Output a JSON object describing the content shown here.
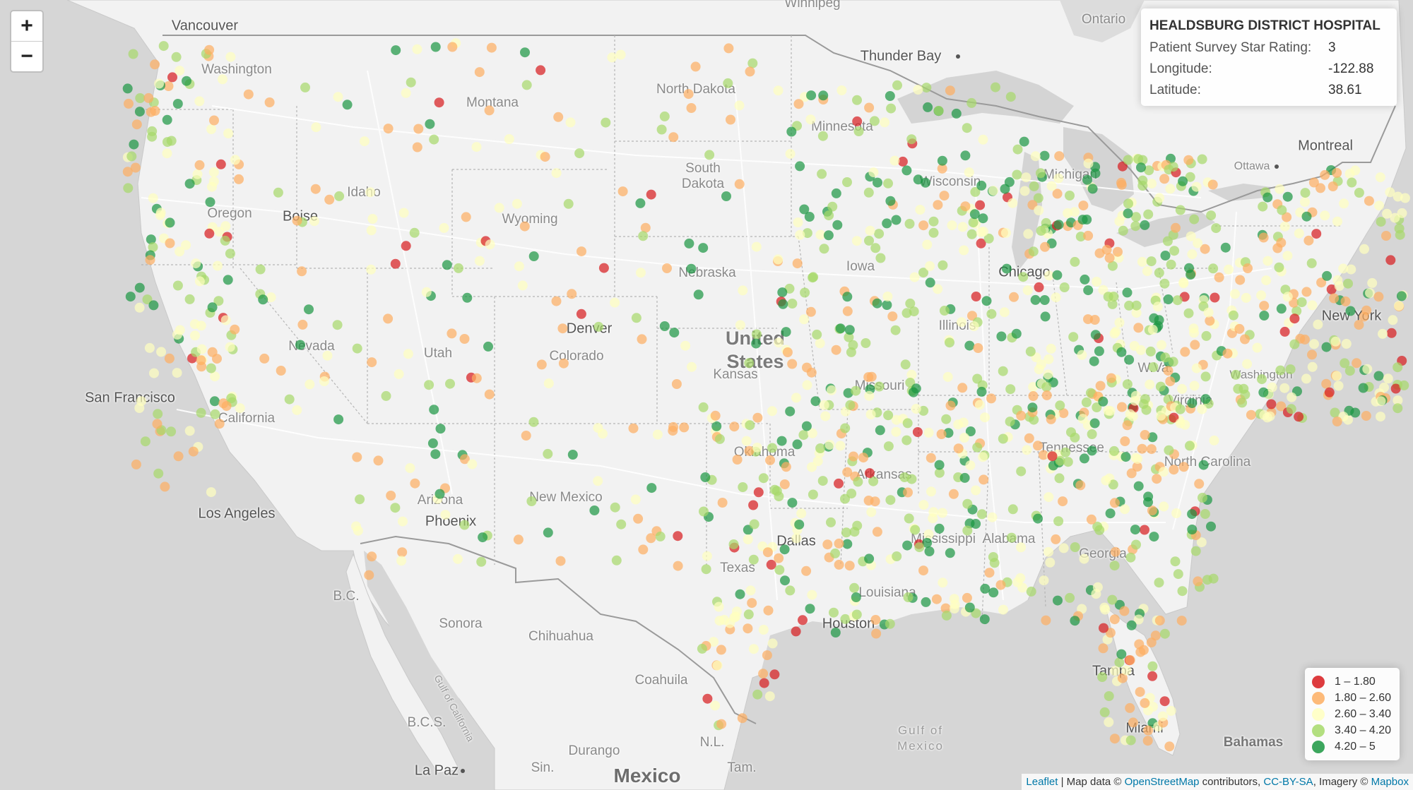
{
  "info_panel": {
    "title": "HEALDSBURG DISTRICT HOSPITAL",
    "rows": [
      {
        "label": "Patient Survey Star Rating:",
        "value": "3"
      },
      {
        "label": "Longitude:",
        "value": "-122.88"
      },
      {
        "label": "Latitude:",
        "value": "38.61"
      }
    ]
  },
  "zoom": {
    "in_label": "+",
    "out_label": "−"
  },
  "legend": {
    "items": [
      {
        "label": "1 – 1.80",
        "color": "#d7191c"
      },
      {
        "label": "1.80 – 2.60",
        "color": "#fdae61"
      },
      {
        "label": "2.60 – 3.40",
        "color": "#ffffbf"
      },
      {
        "label": "3.40 – 4.20",
        "color": "#a6d96a"
      },
      {
        "label": "4.20 – 5",
        "color": "#1a9641"
      }
    ]
  },
  "attribution": {
    "leaflet": "Leaflet",
    "sep1": " | Map data © ",
    "osm": "OpenStreetMap",
    "contrib": " contributors, ",
    "license": "CC-BY-SA",
    "imagery": ", Imagery © ",
    "mapbox": "Mapbox"
  },
  "labels": {
    "winnipeg": "Winnipeg",
    "vancouver": "Vancouver",
    "ontario": "Ontario",
    "thunder_bay": "Thunder Bay",
    "montreal": "Montreal",
    "ottawa": "Ottawa",
    "washington": "Washington",
    "montana": "Montana",
    "north_dakota": "North Dakota",
    "minnesota": "Minnesota",
    "south_dakota": "South\nDakota",
    "oregon": "Oregon",
    "idaho": "Idaho",
    "boise": "Boise",
    "wyoming": "Wyoming",
    "wisconsin": "Wisconsin",
    "michigan": "Michigan",
    "nebraska": "Nebraska",
    "iowa": "Iowa",
    "chicago": "Chicago",
    "new_york": "New York",
    "nevada": "Nevada",
    "utah": "Utah",
    "denver": "Denver",
    "colorado": "Colorado",
    "united_states": "United\nStates",
    "kansas": "Kansas",
    "missouri": "Missouri",
    "illinois": "Illinois",
    "wva": "W.Va.",
    "washington_dc": "Washington",
    "virginia": "Virginia",
    "san_francisco": "San Francisco",
    "california": "California",
    "oklahoma": "Oklahoma",
    "arkansas": "Arkansas",
    "north_carolina": "North Carolina",
    "tennessee": "Tennessee",
    "los_angeles": "Los Angeles",
    "arizona": "Arizona",
    "phoenix": "Phoenix",
    "new_mexico": "New Mexico",
    "dallas": "Dallas",
    "mississippi": "Mississippi",
    "alabama": "Alabama",
    "georgia": "Georgia",
    "texas": "Texas",
    "louisiana": "Louisiana",
    "houston": "Houston",
    "bc": "B.C.",
    "sonora": "Sonora",
    "chihuahua": "Chihuahua",
    "coahuila": "Coahuila",
    "tampa": "Tampa",
    "miami": "Miami",
    "bahamas": "Bahamas",
    "gulf_of_california": "Gulf of California",
    "bcs": "B.C.S.",
    "gulf_of_mexico": "Gulf of\nMexico",
    "nl": "N.L.",
    "durango": "Durango",
    "la_paz": "La Paz",
    "sin": "Sin.",
    "tam": "Tam.",
    "mexico": "Mexico"
  }
}
